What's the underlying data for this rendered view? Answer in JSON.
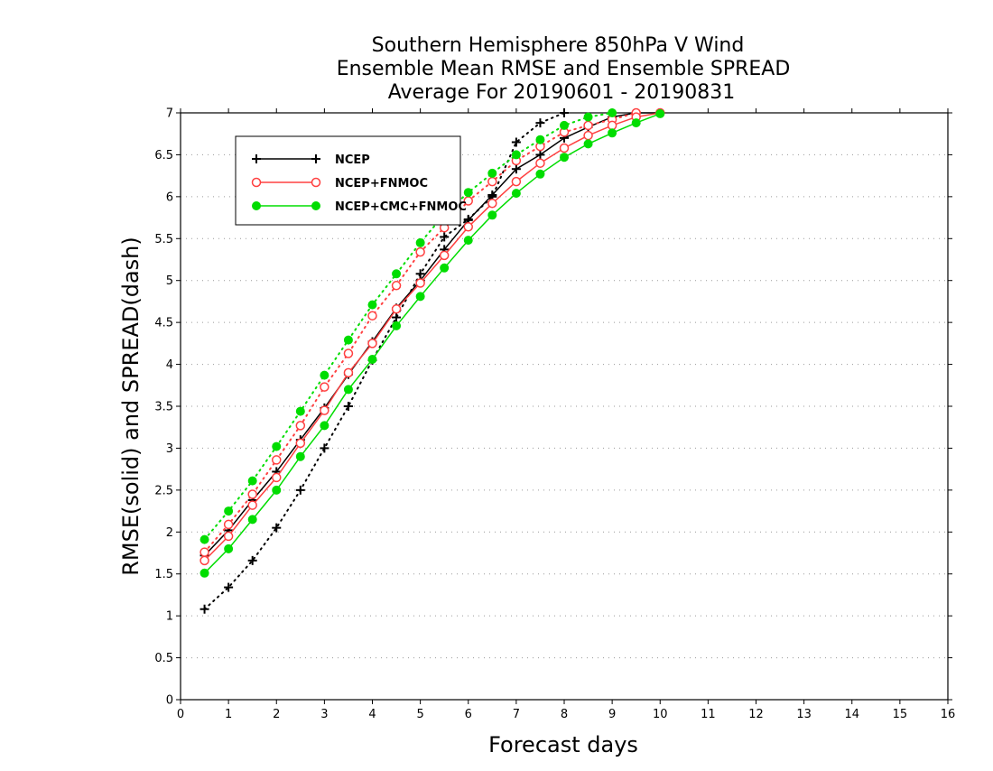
{
  "chart_data": {
    "type": "line",
    "title_lines": [
      "Southern Hemisphere 850hPa V Wind",
      "Ensemble Mean RMSE and Ensemble SPREAD",
      "Average For 20190601 - 20190831"
    ],
    "xlabel": "Forecast days",
    "ylabel": "RMSE(solid) and SPREAD(dash)",
    "xlim": [
      0,
      16
    ],
    "ylim": [
      0,
      7
    ],
    "x_ticks": [
      0,
      1,
      2,
      3,
      4,
      5,
      6,
      7,
      8,
      9,
      10,
      11,
      12,
      13,
      14,
      15,
      16
    ],
    "y_ticks": [
      0,
      0.5,
      1,
      1.5,
      2,
      2.5,
      3,
      3.5,
      4,
      4.5,
      5,
      5.5,
      6,
      6.5,
      7
    ],
    "grid": "horizontal dotted",
    "legend_position": "top-left",
    "x": [
      0.5,
      1,
      1.5,
      2,
      2.5,
      3,
      3.5,
      4,
      4.5,
      5,
      5.5,
      6,
      6.5,
      7,
      7.5,
      8,
      8.5,
      9,
      9.5,
      10
    ],
    "series": [
      {
        "name": "NCEP",
        "color": "#000000",
        "marker": "plus",
        "rmse": [
          1.72,
          2.02,
          2.38,
          2.72,
          3.1,
          3.48,
          3.88,
          4.27,
          4.67,
          5.0,
          5.37,
          5.72,
          6.02,
          6.33,
          6.5,
          6.7,
          6.83,
          6.95,
          7.0,
          7.0
        ],
        "spread": [
          1.08,
          1.34,
          1.66,
          2.05,
          2.5,
          3.0,
          3.5,
          4.05,
          4.56,
          5.08,
          5.52,
          5.73,
          6.0,
          6.65,
          6.88,
          7.0
        ]
      },
      {
        "name": "NCEP+FNMOC",
        "color": "#ff4040",
        "marker": "open-circle",
        "rmse": [
          1.66,
          1.95,
          2.32,
          2.65,
          3.06,
          3.45,
          3.9,
          4.25,
          4.66,
          4.97,
          5.3,
          5.64,
          5.92,
          6.18,
          6.4,
          6.58,
          6.73,
          6.85,
          6.95,
          7.0
        ],
        "spread": [
          1.76,
          2.09,
          2.45,
          2.86,
          3.27,
          3.73,
          4.13,
          4.58,
          4.94,
          5.34,
          5.63,
          5.95,
          6.18,
          6.43,
          6.6,
          6.77,
          6.85,
          6.92,
          7.0
        ]
      },
      {
        "name": "NCEP+CMC+FNMOC",
        "color": "#00dd00",
        "marker": "filled-circle",
        "rmse": [
          1.51,
          1.8,
          2.15,
          2.5,
          2.9,
          3.27,
          3.7,
          4.06,
          4.46,
          4.81,
          5.15,
          5.48,
          5.78,
          6.04,
          6.27,
          6.47,
          6.63,
          6.76,
          6.88,
          6.99
        ],
        "spread": [
          1.91,
          2.25,
          2.61,
          3.02,
          3.44,
          3.87,
          4.29,
          4.71,
          5.08,
          5.45,
          5.79,
          6.05,
          6.28,
          6.5,
          6.68,
          6.85,
          6.95,
          7.0
        ]
      }
    ]
  }
}
